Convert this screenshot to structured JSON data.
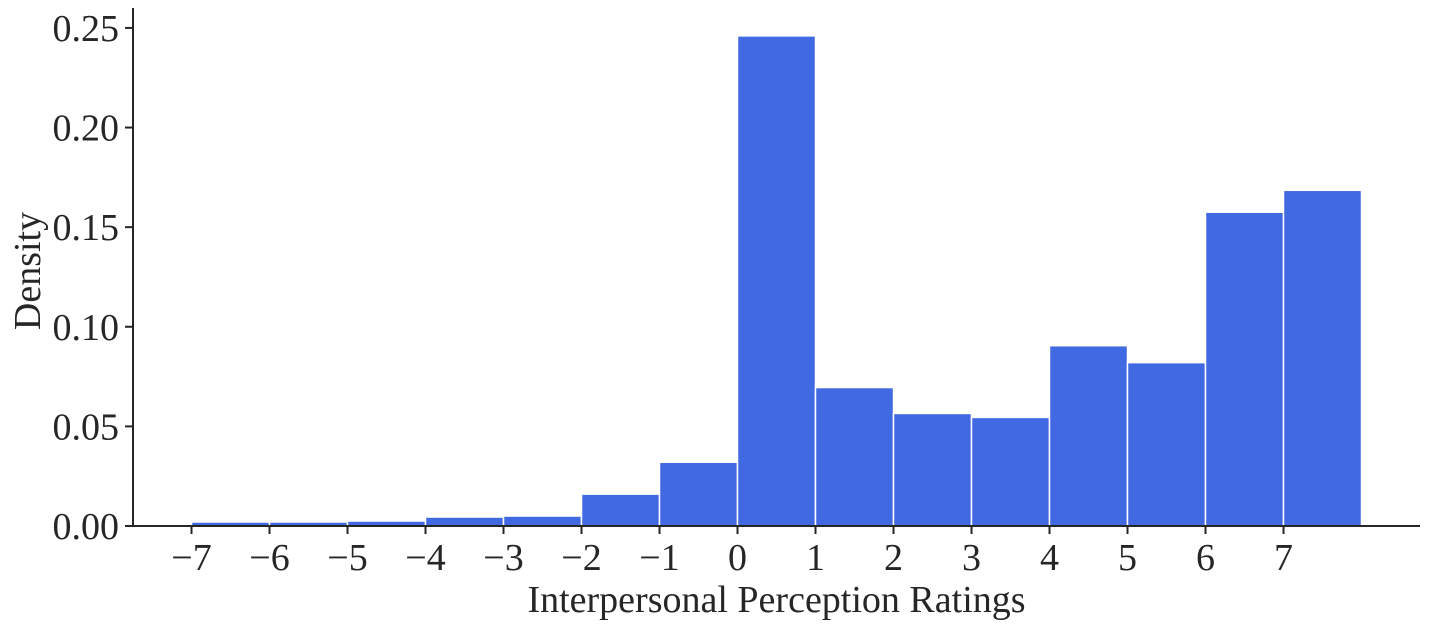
{
  "chart_data": {
    "type": "bar",
    "xlabel": "Interpersonal Perception Ratings",
    "ylabel": "Density",
    "xlim": [
      -7.75,
      8.75
    ],
    "ylim": [
      0,
      0.26
    ],
    "grid": false,
    "bar_color": "#4169E1",
    "xticks": [
      -7,
      -6,
      -5,
      -4,
      -3,
      -2,
      -1,
      0,
      1,
      2,
      3,
      4,
      5,
      6,
      7
    ],
    "xtick_labels": [
      "−7",
      "−6",
      "−5",
      "−4",
      "−3",
      "−2",
      "−1",
      "0",
      "1",
      "2",
      "3",
      "4",
      "5",
      "6",
      "7"
    ],
    "yticks": [
      0,
      0.05,
      0.1,
      0.15,
      0.2,
      0.25
    ],
    "ytick_labels": [
      "0.00",
      "0.05",
      "0.10",
      "0.15",
      "0.20",
      "0.25"
    ],
    "bins": [
      {
        "left": -7,
        "right": -6,
        "value": 0.002
      },
      {
        "left": -6,
        "right": -5,
        "value": 0.002
      },
      {
        "left": -5,
        "right": -4,
        "value": 0.0025
      },
      {
        "left": -4,
        "right": -3,
        "value": 0.0045
      },
      {
        "left": -3,
        "right": -2,
        "value": 0.005
      },
      {
        "left": -2,
        "right": -1,
        "value": 0.016
      },
      {
        "left": -1,
        "right": 0,
        "value": 0.032
      },
      {
        "left": 0,
        "right": 1,
        "value": 0.246
      },
      {
        "left": 1,
        "right": 2,
        "value": 0.0695
      },
      {
        "left": 2,
        "right": 3,
        "value": 0.0565
      },
      {
        "left": 3,
        "right": 4,
        "value": 0.0545
      },
      {
        "left": 4,
        "right": 5,
        "value": 0.0905
      },
      {
        "left": 5,
        "right": 6,
        "value": 0.082
      },
      {
        "left": 6,
        "right": 7,
        "value": 0.1575
      },
      {
        "left": 7,
        "right": 8,
        "value": 0.1685
      }
    ]
  }
}
